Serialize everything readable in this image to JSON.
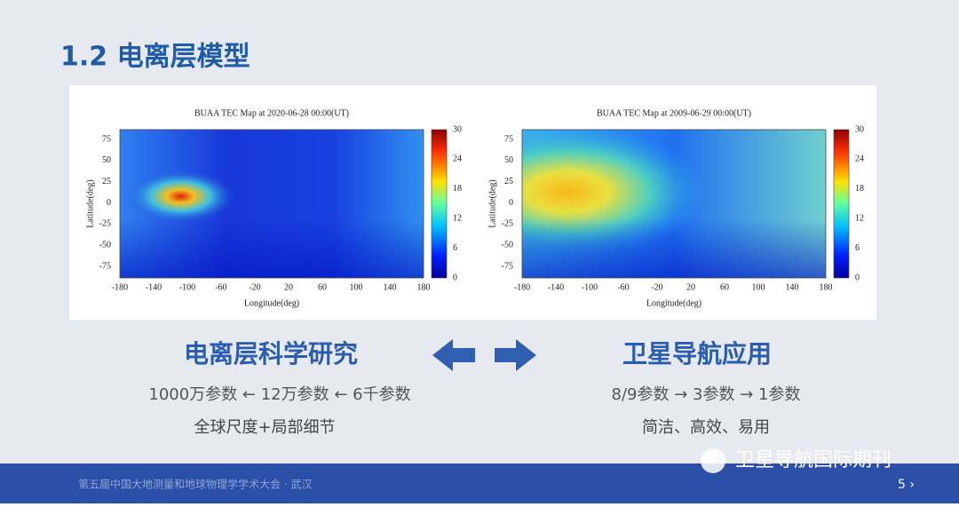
{
  "header": {
    "title": "1.2 电离层模型"
  },
  "figures": [
    {
      "title": "BUAA TEC  Map at 2020-06-28 00:00(UT)",
      "xlabel": "Longitude(deg)",
      "ylabel": "Latitude(deg)",
      "xticks": [
        -180,
        -140,
        -100,
        -60,
        -20,
        20,
        60,
        100,
        140,
        180
      ],
      "yticks": [
        75,
        50,
        25,
        0,
        -25,
        -50,
        -75
      ],
      "colorbar_ticks": [
        30,
        24,
        18,
        12,
        6,
        0
      ]
    },
    {
      "title": "BUAA TEC  Map at 2009-06-29 00:00(UT)",
      "xlabel": "Longitude(deg)",
      "ylabel": "Latitude(deg)",
      "xticks": [
        -180,
        -140,
        -100,
        -60,
        -20,
        20,
        60,
        100,
        140,
        180
      ],
      "yticks": [
        75,
        50,
        25,
        0,
        -25,
        -50,
        -75
      ],
      "colorbar_ticks": [
        30,
        24,
        18,
        12,
        6,
        0
      ]
    }
  ],
  "left": {
    "heading": "电离层科学研究",
    "line1": "1000万参数 ← 12万参数 ← 6千参数",
    "line2": "全球尺度+局部细节"
  },
  "right": {
    "heading": "卫星导航应用",
    "line1": "8/9参数 → 3参数 → 1参数",
    "line2": "简洁、高效、易用"
  },
  "footer": {
    "text": "第五届中国大地测量和地球物理学学术大会 · 武汉",
    "page": "5 ›",
    "watermark": "卫星导航国际期刊"
  }
}
